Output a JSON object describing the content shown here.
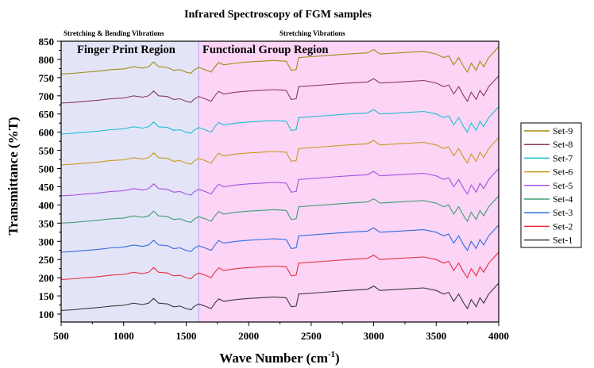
{
  "chart_data": {
    "type": "line",
    "title": "Infrared Spectroscopy of FGM samples",
    "xlabel": "Wave Number (cm",
    "xlabel_sup": "-1",
    "xlabel_end": ")",
    "ylabel": "Transmittance (%T)",
    "xlim": [
      500,
      4000
    ],
    "ylim": [
      85,
      850
    ],
    "xticks": [
      500,
      1000,
      1500,
      2000,
      2500,
      3000,
      3500,
      4000
    ],
    "yticks": [
      100,
      150,
      200,
      250,
      300,
      350,
      400,
      450,
      500,
      550,
      600,
      650,
      700,
      750,
      800,
      850
    ],
    "grid": false,
    "legend_position": "right",
    "regions": [
      {
        "label": "Finger Print Region",
        "header": "Stretching & Bending Vibrations",
        "from": 500,
        "to": 1600,
        "color": "#e4e4f8"
      },
      {
        "label": "Functional Group Region",
        "header": "Stretching  Vibrations",
        "from": 1600,
        "to": 4000,
        "color": "#fcd4f6"
      }
    ],
    "x": [
      500,
      600,
      700,
      800,
      900,
      1000,
      1080,
      1150,
      1200,
      1240,
      1280,
      1350,
      1400,
      1450,
      1500,
      1540,
      1560,
      1600,
      1650,
      1700,
      1730,
      1760,
      1800,
      1900,
      2000,
      2100,
      2200,
      2300,
      2340,
      2380,
      2400,
      2600,
      2800,
      2950,
      3000,
      3050,
      3200,
      3400,
      3500,
      3560,
      3600,
      3640,
      3680,
      3720,
      3750,
      3780,
      3820,
      3850,
      3880,
      3920,
      3960,
      4000
    ],
    "series": [
      {
        "name": "Set-9",
        "color": "#a08c12",
        "y": [
          760,
          762,
          765,
          768,
          772,
          774,
          780,
          776,
          780,
          793,
          780,
          778,
          770,
          772,
          765,
          762,
          770,
          778,
          772,
          765,
          780,
          792,
          785,
          790,
          793,
          795,
          797,
          795,
          770,
          772,
          805,
          810,
          815,
          818,
          827,
          815,
          818,
          822,
          815,
          805,
          810,
          785,
          805,
          780,
          765,
          790,
          770,
          795,
          780,
          805,
          820,
          835
        ]
      },
      {
        "name": "Set-8",
        "color": "#8c3a5e",
        "y": [
          680,
          682,
          685,
          688,
          692,
          694,
          700,
          696,
          700,
          713,
          700,
          698,
          690,
          692,
          685,
          682,
          690,
          698,
          692,
          685,
          700,
          712,
          705,
          710,
          713,
          715,
          717,
          715,
          690,
          692,
          725,
          730,
          735,
          738,
          747,
          735,
          738,
          742,
          735,
          725,
          730,
          705,
          725,
          700,
          685,
          710,
          690,
          715,
          700,
          725,
          740,
          755
        ]
      },
      {
        "name": "Set-7",
        "color": "#1cbfd0",
        "y": [
          595,
          597,
          600,
          603,
          607,
          609,
          615,
          611,
          615,
          628,
          615,
          613,
          605,
          607,
          600,
          597,
          605,
          613,
          607,
          600,
          615,
          627,
          620,
          625,
          628,
          630,
          632,
          630,
          605,
          607,
          640,
          645,
          650,
          653,
          662,
          650,
          653,
          657,
          650,
          640,
          645,
          620,
          640,
          615,
          600,
          625,
          605,
          630,
          615,
          640,
          655,
          670
        ]
      },
      {
        "name": "Set-6",
        "color": "#c99a1e",
        "y": [
          510,
          512,
          515,
          518,
          522,
          524,
          530,
          526,
          530,
          543,
          530,
          528,
          520,
          522,
          515,
          512,
          520,
          528,
          522,
          515,
          530,
          542,
          535,
          540,
          543,
          545,
          547,
          545,
          520,
          522,
          555,
          560,
          565,
          568,
          577,
          565,
          568,
          572,
          565,
          555,
          560,
          535,
          555,
          530,
          515,
          540,
          520,
          545,
          530,
          555,
          570,
          585
        ]
      },
      {
        "name": "Set-5",
        "color": "#a452e0",
        "y": [
          425,
          427,
          430,
          433,
          437,
          439,
          445,
          441,
          445,
          458,
          445,
          443,
          435,
          437,
          430,
          427,
          435,
          443,
          437,
          430,
          445,
          457,
          450,
          455,
          458,
          460,
          462,
          460,
          435,
          437,
          470,
          475,
          480,
          483,
          492,
          480,
          483,
          487,
          480,
          470,
          475,
          450,
          470,
          445,
          430,
          455,
          435,
          460,
          445,
          470,
          485,
          500
        ]
      },
      {
        "name": "Set-4",
        "color": "#3f9e72",
        "y": [
          350,
          352,
          355,
          358,
          362,
          364,
          370,
          366,
          370,
          383,
          370,
          368,
          360,
          362,
          355,
          352,
          360,
          368,
          362,
          355,
          370,
          382,
          375,
          380,
          383,
          385,
          387,
          385,
          360,
          362,
          395,
          400,
          405,
          408,
          417,
          405,
          408,
          412,
          405,
          395,
          400,
          375,
          395,
          370,
          355,
          380,
          360,
          385,
          370,
          395,
          410,
          425
        ]
      },
      {
        "name": "Set-3",
        "color": "#2f6ce0",
        "y": [
          270,
          272,
          275,
          278,
          282,
          284,
          290,
          286,
          290,
          303,
          290,
          288,
          280,
          282,
          275,
          272,
          280,
          288,
          282,
          275,
          290,
          302,
          295,
          300,
          303,
          305,
          307,
          305,
          280,
          282,
          315,
          320,
          325,
          328,
          337,
          325,
          328,
          332,
          325,
          315,
          320,
          295,
          315,
          290,
          275,
          300,
          280,
          305,
          290,
          315,
          330,
          345
        ]
      },
      {
        "name": "Set-2",
        "color": "#e8303e",
        "y": [
          195,
          197,
          200,
          203,
          207,
          209,
          215,
          211,
          215,
          228,
          215,
          213,
          205,
          207,
          200,
          197,
          205,
          213,
          207,
          200,
          215,
          227,
          220,
          225,
          228,
          230,
          232,
          230,
          205,
          207,
          240,
          245,
          250,
          253,
          262,
          250,
          253,
          257,
          250,
          240,
          245,
          220,
          240,
          215,
          200,
          225,
          205,
          230,
          215,
          240,
          255,
          270
        ]
      },
      {
        "name": "Set-1",
        "color": "#3a3a3a",
        "y": [
          110,
          112,
          115,
          118,
          122,
          124,
          130,
          126,
          130,
          143,
          130,
          128,
          120,
          122,
          115,
          112,
          120,
          128,
          122,
          115,
          130,
          142,
          135,
          140,
          143,
          145,
          147,
          145,
          120,
          122,
          155,
          160,
          165,
          168,
          177,
          165,
          168,
          172,
          165,
          155,
          160,
          135,
          155,
          130,
          115,
          140,
          120,
          145,
          130,
          155,
          170,
          185
        ]
      }
    ]
  }
}
